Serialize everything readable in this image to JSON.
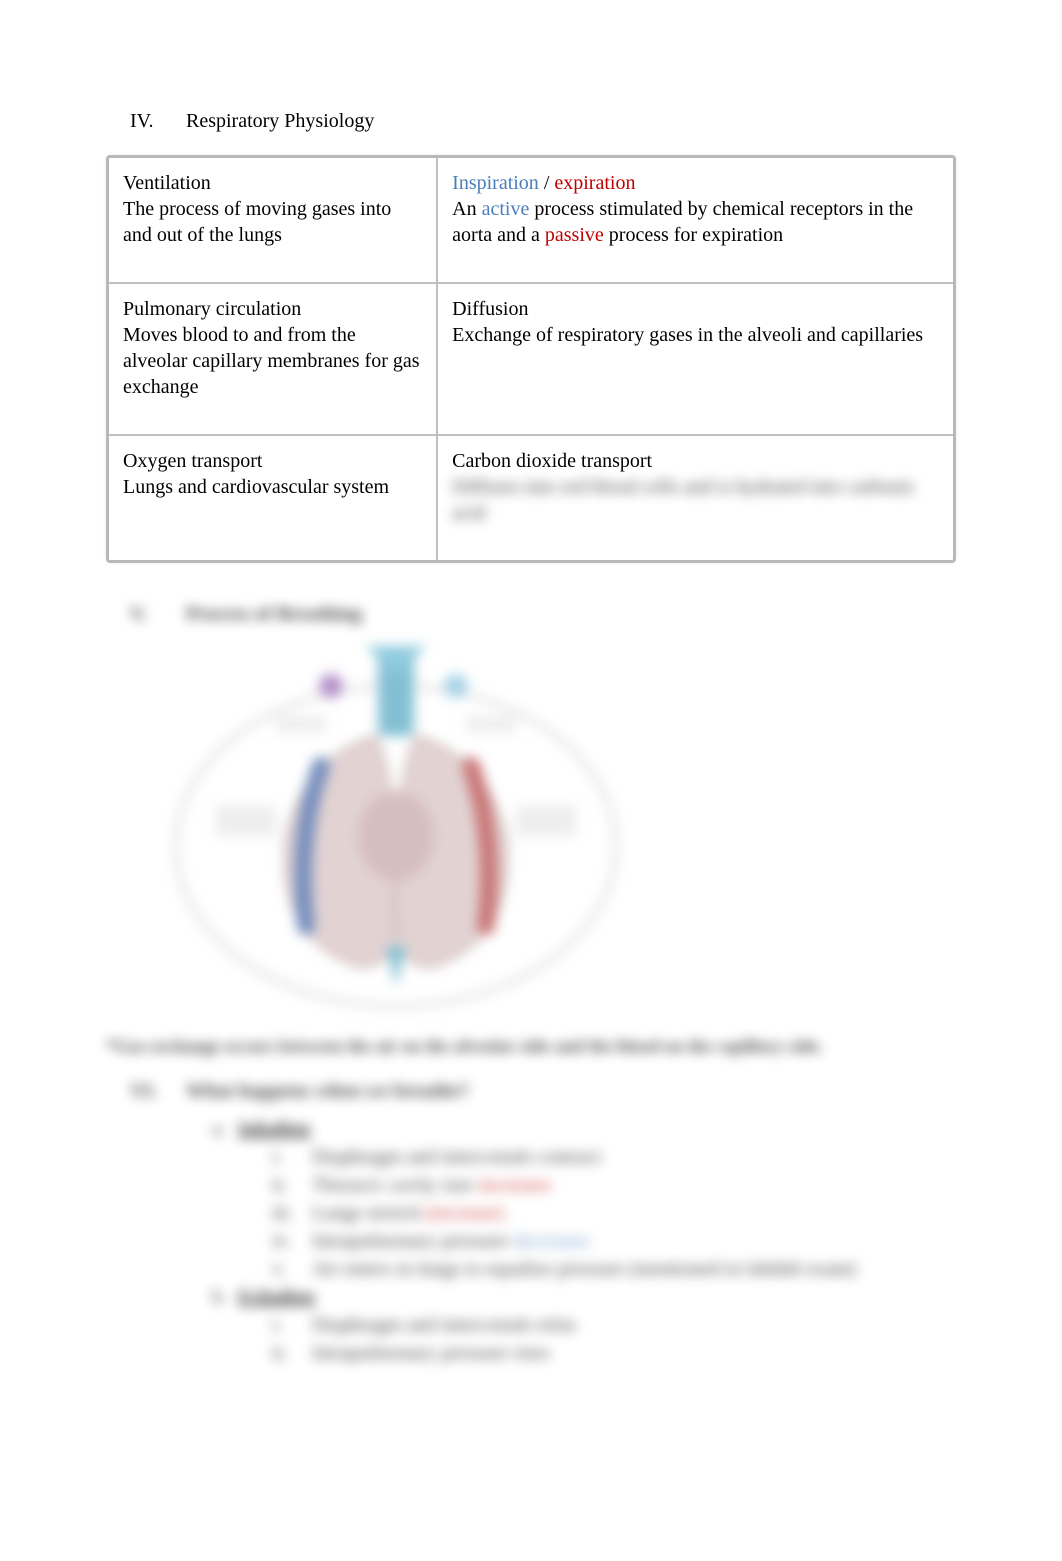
{
  "colors": {
    "blue": "#4a7ebb",
    "red": "#c00000",
    "text": "#000000",
    "table_border": "#b8b8b8",
    "background": "#ffffff"
  },
  "typography": {
    "body_family": "Times New Roman",
    "body_size_pt": 15,
    "heading_size_pt": 15
  },
  "heading": {
    "numeral": "IV.",
    "text": "Respiratory Physiology"
  },
  "table": {
    "rows": [
      {
        "left": {
          "title": "Ventilation",
          "body": "The process of moving gases into and out of the lungs"
        },
        "right": {
          "segments": [
            {
              "text": "Inspiration",
              "color": "blue"
            },
            {
              "text": " / ",
              "color": "text"
            },
            {
              "text": "expiration",
              "color": "red"
            }
          ],
          "body_segments": [
            {
              "text": "An ",
              "color": "text"
            },
            {
              "text": "active",
              "color": "blue"
            },
            {
              "text": " process stimulated by chemical receptors in the aorta and a  ",
              "color": "text"
            },
            {
              "text": "passive",
              "color": "red"
            },
            {
              "text": " process for expiration",
              "color": "text"
            }
          ]
        }
      },
      {
        "left": {
          "title": "Pulmonary circulation",
          "body": "Moves blood to and from the alveolar capillary membranes for gas exchange"
        },
        "right": {
          "title": "Diffusion",
          "body": "Exchange of respiratory gases in the alveoli and capillaries"
        }
      },
      {
        "left": {
          "title": "Oxygen transport",
          "body": "Lungs and cardiovascular system"
        },
        "right": {
          "title": "Carbon dioxide transport",
          "body": "Diffuses into red blood cells and is hydrated into carbonic acid"
        }
      }
    ]
  },
  "subheading_v": {
    "numeral": "V.",
    "text": "Process of Breathing"
  },
  "caption": "*Gas exchange occurs between the air on the alveolar side and the blood on the capillary side.",
  "section_vi": {
    "numeral": "VI.",
    "text": "What happens when we breathe?",
    "a": {
      "marker": "a.",
      "label": "Inhaling",
      "items": [
        {
          "marker": "i.",
          "segments": [
            {
              "text": "Diaphragm and intercostals contract",
              "color": "text"
            }
          ]
        },
        {
          "marker": "ii.",
          "segments": [
            {
              "text": "Thoracic cavity size ",
              "color": "text"
            },
            {
              "text": "increases",
              "color": "red"
            }
          ]
        },
        {
          "marker": "iii.",
          "segments": [
            {
              "text": "Lungs stretch ",
              "color": "text"
            },
            {
              "text": "(increase)",
              "color": "red"
            }
          ]
        },
        {
          "marker": "iv.",
          "segments": [
            {
              "text": "Intrapulmonary pressure ",
              "color": "text"
            },
            {
              "text": "decreases",
              "color": "blue"
            }
          ]
        },
        {
          "marker": "v.",
          "segments": [
            {
              "text": "Air enters in lungs to equalize pressure (mentioned in lubdub exam)",
              "color": "text"
            }
          ]
        }
      ]
    },
    "b": {
      "marker": "b.",
      "label": "Exhaling",
      "items": [
        {
          "marker": "i.",
          "segments": [
            {
              "text": "Diaphragm and intercostals relax",
              "color": "text"
            }
          ]
        },
        {
          "marker": "ii.",
          "segments": [
            {
              "text": "Intrapulmonary pressure rises",
              "color": "text"
            }
          ]
        }
      ]
    }
  },
  "diagram": {
    "colors": {
      "outline": "#8a8a8a",
      "lung_fill": "#d9c4c4",
      "artery": "#b84a4a",
      "vein": "#4a6aa8",
      "trachea": "#5aaac4",
      "label": "#606060"
    }
  }
}
